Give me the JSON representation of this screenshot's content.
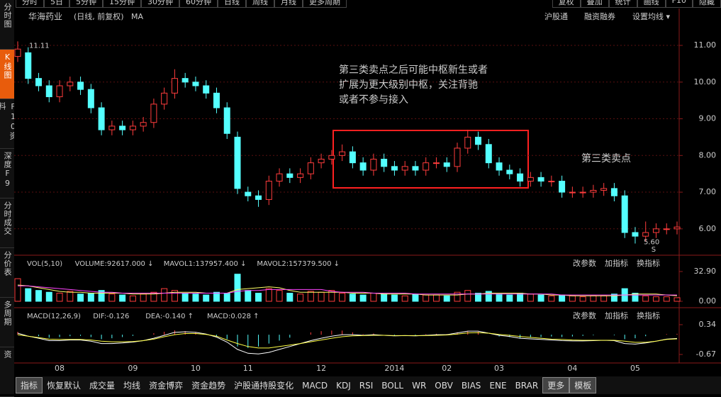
{
  "toolbar": {
    "left": [
      "分时",
      "5日",
      "5分钟",
      "15分钟",
      "30分钟",
      "60分钟",
      "日线",
      "周线",
      "月线",
      "更多周期"
    ],
    "right": [
      "复权",
      "叠加",
      "统计",
      "画线",
      "F10",
      "隐藏"
    ]
  },
  "sidebar": [
    "分时图",
    "K线图",
    "F10资料",
    "深度F9",
    "分时成交",
    "分价表",
    "多周期",
    "资"
  ],
  "header": {
    "stock": "华海药业",
    "mode": "(日线, 前复权)",
    "ma": "MA",
    "links": [
      "沪股通",
      "融资融券",
      "设置均线 ▾"
    ]
  },
  "chart_data": {
    "type": "candlestick",
    "categories": [
      null,
      null,
      null,
      null,
      "08",
      null,
      null,
      null,
      null,
      null,
      null,
      "09",
      null,
      null,
      null,
      null,
      null,
      "10",
      null,
      null,
      null,
      null,
      "11",
      null,
      null,
      null,
      null,
      null,
      null,
      "12",
      null,
      null,
      null,
      null,
      null,
      null,
      "2014",
      null,
      null,
      null,
      null,
      "02",
      null,
      null,
      null,
      null,
      "03",
      null,
      null,
      null,
      null,
      null,
      null,
      "04",
      null,
      null,
      null,
      null,
      null,
      "05",
      null,
      null,
      null,
      null
    ],
    "open": [
      10.7,
      10.8,
      10.1,
      9.9,
      9.6,
      9.9,
      10.0,
      9.8,
      9.3,
      8.7,
      8.8,
      8.7,
      8.8,
      8.9,
      9.4,
      9.7,
      10.1,
      10.0,
      9.9,
      9.7,
      9.3,
      8.5,
      7.0,
      6.9,
      6.8,
      7.3,
      7.5,
      7.4,
      7.5,
      7.8,
      7.9,
      8.0,
      8.1,
      7.8,
      7.6,
      7.9,
      7.7,
      7.6,
      7.7,
      7.6,
      7.8,
      7.8,
      7.7,
      8.2,
      8.5,
      8.3,
      7.8,
      7.6,
      7.5,
      7.3,
      7.4,
      7.3,
      7.3,
      7.0,
      7.0,
      7.0,
      7.05,
      7.1,
      6.9,
      5.9,
      5.8,
      5.9,
      6.0,
      6.0
    ],
    "high": [
      11.11,
      10.95,
      10.25,
      10.05,
      10.05,
      10.15,
      10.15,
      9.95,
      9.45,
      8.95,
      8.95,
      8.95,
      9.05,
      9.55,
      9.85,
      10.35,
      10.25,
      10.15,
      10.05,
      9.85,
      9.45,
      8.65,
      7.15,
      7.05,
      7.45,
      7.65,
      7.65,
      7.65,
      7.95,
      8.05,
      8.15,
      8.3,
      8.25,
      7.95,
      8.05,
      8.05,
      7.85,
      7.85,
      7.85,
      7.95,
      7.95,
      7.95,
      8.35,
      8.7,
      8.65,
      8.45,
      7.95,
      7.75,
      7.65,
      7.55,
      7.55,
      7.45,
      7.45,
      7.15,
      7.15,
      7.2,
      7.25,
      7.25,
      7.05,
      6.05,
      6.2,
      6.15,
      6.15,
      6.2
    ],
    "low": [
      10.55,
      9.95,
      9.75,
      9.45,
      9.45,
      9.75,
      9.65,
      9.15,
      8.55,
      8.55,
      8.55,
      8.55,
      8.65,
      8.75,
      9.25,
      9.55,
      9.85,
      9.75,
      9.55,
      9.15,
      8.45,
      6.95,
      6.75,
      6.6,
      6.65,
      7.15,
      7.25,
      7.25,
      7.35,
      7.65,
      7.75,
      7.85,
      7.65,
      7.45,
      7.45,
      7.55,
      7.45,
      7.45,
      7.45,
      7.45,
      7.65,
      7.55,
      7.55,
      8.05,
      8.15,
      7.65,
      7.45,
      7.35,
      7.15,
      7.15,
      7.15,
      7.15,
      6.85,
      6.85,
      6.85,
      6.85,
      6.9,
      6.75,
      5.75,
      5.6,
      5.65,
      5.75,
      5.85,
      5.85
    ],
    "close": [
      10.9,
      10.1,
      9.9,
      9.6,
      9.9,
      10.0,
      9.8,
      9.3,
      8.7,
      8.8,
      8.7,
      8.8,
      8.9,
      9.4,
      9.7,
      10.1,
      10.0,
      9.9,
      9.7,
      9.3,
      8.6,
      7.1,
      6.9,
      6.8,
      7.3,
      7.5,
      7.4,
      7.5,
      7.8,
      7.9,
      8.0,
      8.1,
      7.8,
      7.6,
      7.9,
      7.7,
      7.6,
      7.7,
      7.6,
      7.8,
      7.8,
      7.7,
      8.2,
      8.5,
      8.3,
      7.8,
      7.6,
      7.5,
      7.3,
      7.4,
      7.3,
      7.3,
      7.0,
      7.0,
      7.0,
      7.05,
      7.1,
      6.9,
      5.9,
      5.8,
      5.9,
      6.0,
      6.0,
      6.05
    ],
    "up_color": "#ff3c3c",
    "down_color": "#54ffff",
    "ylim": [
      5.32,
      11.89
    ],
    "yticks": [
      {
        "value": 11,
        "label": "11.00"
      },
      {
        "value": 10,
        "label": "10.00"
      },
      {
        "value": 9,
        "label": "9.00"
      },
      {
        "value": 8,
        "label": "8.00"
      },
      {
        "value": 7,
        "label": "7.00"
      },
      {
        "value": 6,
        "label": "6.00"
      }
    ],
    "grid": true,
    "high_label": "11.11",
    "low_label": "5.60",
    "sell_mark": "S",
    "annotations": [
      "第三类卖点之后可能中枢新生或者",
      "扩展为更大级别中枢，关注背驰",
      "或者不参与接入",
      "第三类卖点"
    ],
    "volume": {
      "legend": [
        "VOL(5,10)",
        "VOLUME:92617.000 ↓",
        "MAVOL1:137957.400 ↓",
        "MAVOL2:157379.500 ↓"
      ],
      "buttons": [
        "改参数",
        "加指标",
        "换指标"
      ],
      "values": [
        25,
        14,
        12,
        10,
        9,
        11,
        8,
        9,
        12,
        8,
        7,
        6,
        8,
        10,
        14,
        12,
        9,
        8,
        7,
        10,
        9,
        30,
        12,
        9,
        14,
        12,
        9,
        8,
        11,
        10,
        12,
        9,
        8,
        7,
        9,
        8,
        7,
        6,
        8,
        7,
        7,
        6,
        10,
        12,
        9,
        11,
        8,
        7,
        9,
        8,
        7,
        6,
        7,
        6,
        5,
        6,
        6,
        8,
        14,
        9,
        6,
        5,
        5,
        4
      ],
      "mavol1": [
        18,
        17,
        15,
        13,
        11,
        10,
        10,
        9,
        9,
        9,
        9,
        8,
        8,
        8,
        9,
        10,
        10,
        10,
        9,
        9,
        9,
        13,
        14,
        15,
        16,
        15,
        12,
        10,
        10,
        10,
        10,
        10,
        9,
        9,
        9,
        8,
        8,
        8,
        8,
        7,
        7,
        7,
        7,
        8,
        8,
        9,
        9,
        9,
        9,
        8,
        8,
        7,
        7,
        6,
        6,
        6,
        6,
        6,
        7,
        8,
        8,
        8,
        7,
        6
      ],
      "mavol2": [
        17,
        17,
        16,
        15,
        14,
        13,
        12,
        11,
        10,
        10,
        9,
        9,
        9,
        9,
        9,
        9,
        9,
        9,
        9,
        9,
        9,
        11,
        12,
        12,
        13,
        13,
        13,
        13,
        13,
        13,
        11,
        10,
        10,
        10,
        9,
        9,
        9,
        9,
        8,
        8,
        8,
        8,
        8,
        8,
        8,
        8,
        8,
        8,
        8,
        8,
        8,
        8,
        7,
        7,
        7,
        7,
        7,
        7,
        7,
        7,
        7,
        7,
        7,
        7
      ],
      "mavol1_color": "#ffff66",
      "mavol2_color": "#ff44ff",
      "ylim": [
        0,
        35.25
      ],
      "yticks": [
        {
          "value": 32.9,
          "label": "32.90"
        },
        {
          "value": 0,
          "label": "0.00"
        }
      ]
    },
    "macd": {
      "legend": [
        "MACD(12,26,9)",
        "DIF:-0.126",
        "DEA:-0.140 ↑",
        "MACD:0.028 ↑"
      ],
      "buttons": [
        "改参数",
        "加指标",
        "换指标"
      ],
      "hist": [
        0.1,
        0.0,
        -0.05,
        -0.1,
        -0.08,
        -0.05,
        -0.04,
        -0.08,
        -0.15,
        -0.12,
        -0.08,
        -0.04,
        0.0,
        0.05,
        0.1,
        0.15,
        0.12,
        0.08,
        0.02,
        -0.05,
        -0.15,
        -0.4,
        -0.45,
        -0.4,
        -0.3,
        -0.2,
        -0.1,
        0.0,
        0.08,
        0.12,
        0.14,
        0.14,
        0.08,
        0.02,
        0.04,
        0.0,
        -0.02,
        0.0,
        -0.02,
        0.02,
        0.03,
        0.02,
        0.08,
        0.12,
        0.1,
        0.0,
        -0.06,
        -0.08,
        -0.12,
        -0.1,
        -0.08,
        -0.06,
        -0.08,
        -0.06,
        -0.04,
        -0.02,
        0.0,
        -0.02,
        -0.15,
        -0.12,
        -0.05,
        0.0,
        0.02,
        0.03
      ],
      "dif": [
        0.05,
        -0.05,
        -0.12,
        -0.2,
        -0.2,
        -0.18,
        -0.18,
        -0.22,
        -0.3,
        -0.3,
        -0.28,
        -0.25,
        -0.2,
        -0.12,
        -0.02,
        0.08,
        0.1,
        0.08,
        0.02,
        -0.08,
        -0.25,
        -0.5,
        -0.63,
        -0.65,
        -0.6,
        -0.5,
        -0.4,
        -0.3,
        -0.2,
        -0.12,
        -0.05,
        0.0,
        0.0,
        -0.02,
        0.0,
        -0.02,
        -0.04,
        -0.03,
        -0.04,
        -0.02,
        0.0,
        0.0,
        0.06,
        0.12,
        0.12,
        0.05,
        -0.02,
        -0.06,
        -0.12,
        -0.14,
        -0.16,
        -0.18,
        -0.2,
        -0.21,
        -0.21,
        -0.2,
        -0.19,
        -0.2,
        -0.3,
        -0.32,
        -0.28,
        -0.22,
        -0.15,
        -0.126
      ],
      "dea": [
        0.0,
        -0.05,
        -0.1,
        -0.15,
        -0.16,
        -0.16,
        -0.16,
        -0.18,
        -0.22,
        -0.24,
        -0.24,
        -0.23,
        -0.2,
        -0.15,
        -0.07,
        0.0,
        0.04,
        0.04,
        0.01,
        -0.05,
        -0.18,
        -0.3,
        -0.4,
        -0.45,
        -0.45,
        -0.4,
        -0.35,
        -0.3,
        -0.24,
        -0.18,
        -0.12,
        -0.07,
        -0.04,
        -0.03,
        -0.02,
        -0.02,
        -0.03,
        -0.03,
        -0.03,
        -0.03,
        -0.02,
        -0.01,
        0.02,
        0.06,
        0.07,
        0.05,
        0.01,
        -0.02,
        -0.06,
        -0.09,
        -0.12,
        -0.15,
        -0.16,
        -0.18,
        -0.19,
        -0.19,
        -0.19,
        -0.19,
        -0.22,
        -0.26,
        -0.26,
        -0.22,
        -0.16,
        -0.14
      ],
      "dif_color": "#ffffff",
      "dea_color": "#ffff44",
      "ylim": [
        -0.91,
        0.82
      ],
      "yticks": [
        0.34,
        -0.67
      ]
    }
  },
  "bottom_tabs": [
    "指标",
    "恢复默认",
    "成交量",
    "均线",
    "资金博弈",
    "资金趋势",
    "沪股通持股变化",
    "MACD",
    "KDJ",
    "RSI",
    "BOLL",
    "WR",
    "OBV",
    "BIAS",
    "ENE",
    "BRAR",
    "更多",
    "模板"
  ]
}
